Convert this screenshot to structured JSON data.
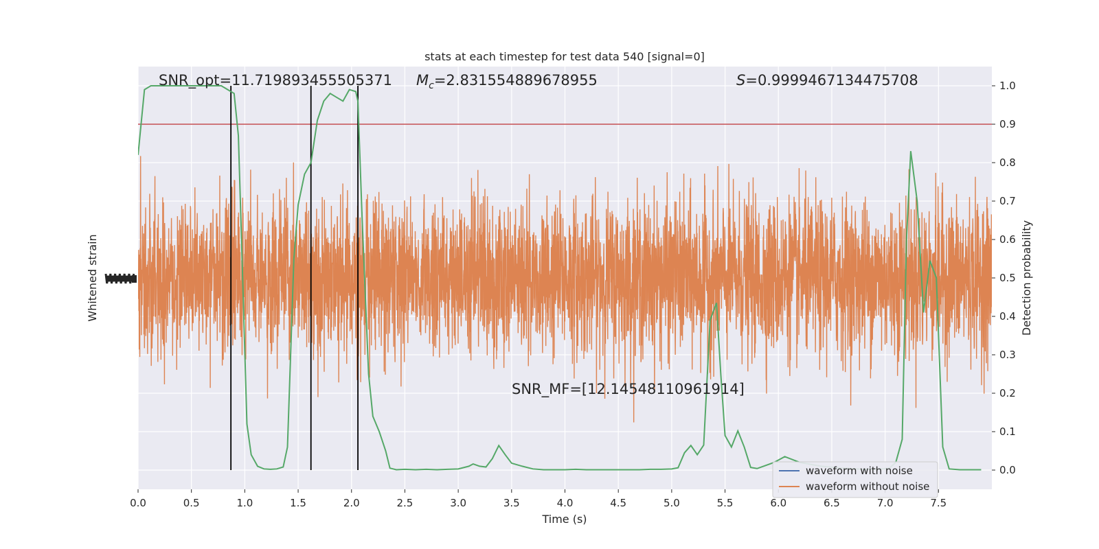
{
  "chart_data": {
    "type": "line",
    "title": "stats at each timestep for test data 540 [signal=0]",
    "xlabel": "Time (s)",
    "ylabel_left": "Whitened strain",
    "ylabel_right": "Detection probability",
    "xlim": [
      0,
      8
    ],
    "ylim_right": [
      -0.05,
      1.05
    ],
    "x_ticks": [
      "0.0",
      "0.5",
      "1.0",
      "1.5",
      "2.0",
      "2.5",
      "3.0",
      "3.5",
      "4.0",
      "4.5",
      "5.0",
      "5.5",
      "6.0",
      "6.5",
      "7.0",
      "7.5"
    ],
    "y_ticks_right": [
      "0.0",
      "0.1",
      "0.2",
      "0.3",
      "0.4",
      "0.5",
      "0.6",
      "0.7",
      "0.8",
      "0.9",
      "1.0"
    ],
    "grid": true,
    "threshold": 0.9,
    "vertical_lines": [
      0.87,
      1.62,
      2.06
    ],
    "annotations": {
      "snr_opt": "SNR_opt=11.719893455505371",
      "mc_symbol": "M",
      "mc_sub": "c",
      "mc_value": "=2.831554889678955",
      "s_symbol": "S",
      "s_value": "=0.9999467134475708",
      "snr_mf": "SNR_MF=[12.14548110961914]"
    },
    "legend": {
      "position": "lower-right",
      "entries": [
        "waveform with noise",
        "waveform without noise"
      ]
    },
    "colors": {
      "noise_waveform": "#4c72b0",
      "clean_waveform": "#dd8452",
      "probability": "#55a868",
      "threshold": "#c44e52",
      "vlines": "#000000",
      "background": "#eaeaf2",
      "grid": "#ffffff"
    },
    "probability_series": {
      "name": "",
      "x": [
        0.0,
        0.06,
        0.12,
        0.18,
        0.24,
        0.3,
        0.36,
        0.42,
        0.48,
        0.54,
        0.6,
        0.66,
        0.72,
        0.78,
        0.84,
        0.9,
        0.94,
        0.98,
        1.02,
        1.06,
        1.12,
        1.18,
        1.24,
        1.3,
        1.36,
        1.4,
        1.46,
        1.5,
        1.56,
        1.62,
        1.68,
        1.74,
        1.8,
        1.86,
        1.92,
        1.98,
        2.04,
        2.06,
        2.1,
        2.16,
        2.2,
        2.26,
        2.32,
        2.36,
        2.42,
        2.5,
        2.6,
        2.7,
        2.8,
        2.9,
        3.0,
        3.1,
        3.14,
        3.2,
        3.26,
        3.32,
        3.38,
        3.44,
        3.5,
        3.6,
        3.7,
        3.8,
        3.9,
        4.0,
        4.1,
        4.2,
        4.3,
        4.4,
        4.5,
        4.6,
        4.7,
        4.8,
        4.9,
        5.0,
        5.06,
        5.12,
        5.18,
        5.24,
        5.3,
        5.36,
        5.42,
        5.46,
        5.5,
        5.56,
        5.62,
        5.68,
        5.74,
        5.8,
        5.86,
        5.96,
        6.06,
        6.2,
        6.4,
        6.6,
        6.8,
        6.96,
        7.04,
        7.1,
        7.16,
        7.2,
        7.24,
        7.3,
        7.36,
        7.42,
        7.48,
        7.54,
        7.6,
        7.7,
        7.8,
        7.9
      ],
      "y": [
        0.82,
        0.99,
        1.0,
        1.0,
        1.0,
        1.0,
        1.0,
        1.0,
        1.0,
        1.0,
        1.0,
        1.0,
        1.0,
        1.0,
        0.99,
        0.98,
        0.87,
        0.5,
        0.12,
        0.04,
        0.01,
        0.003,
        0.002,
        0.003,
        0.008,
        0.06,
        0.55,
        0.69,
        0.77,
        0.8,
        0.91,
        0.96,
        0.98,
        0.97,
        0.96,
        0.99,
        0.985,
        0.96,
        0.65,
        0.25,
        0.14,
        0.1,
        0.05,
        0.005,
        0.001,
        0.002,
        0.001,
        0.002,
        0.001,
        0.002,
        0.003,
        0.01,
        0.016,
        0.01,
        0.008,
        0.03,
        0.064,
        0.04,
        0.018,
        0.01,
        0.003,
        0.001,
        0.001,
        0.001,
        0.002,
        0.001,
        0.001,
        0.001,
        0.001,
        0.001,
        0.001,
        0.002,
        0.002,
        0.003,
        0.006,
        0.045,
        0.064,
        0.04,
        0.065,
        0.39,
        0.435,
        0.25,
        0.09,
        0.06,
        0.102,
        0.06,
        0.007,
        0.004,
        0.01,
        0.02,
        0.035,
        0.02,
        0.01,
        0.005,
        0.002,
        0.003,
        0.005,
        0.02,
        0.08,
        0.6,
        0.83,
        0.7,
        0.41,
        0.545,
        0.5,
        0.06,
        0.003,
        0.001,
        0.001,
        0.001
      ]
    }
  }
}
